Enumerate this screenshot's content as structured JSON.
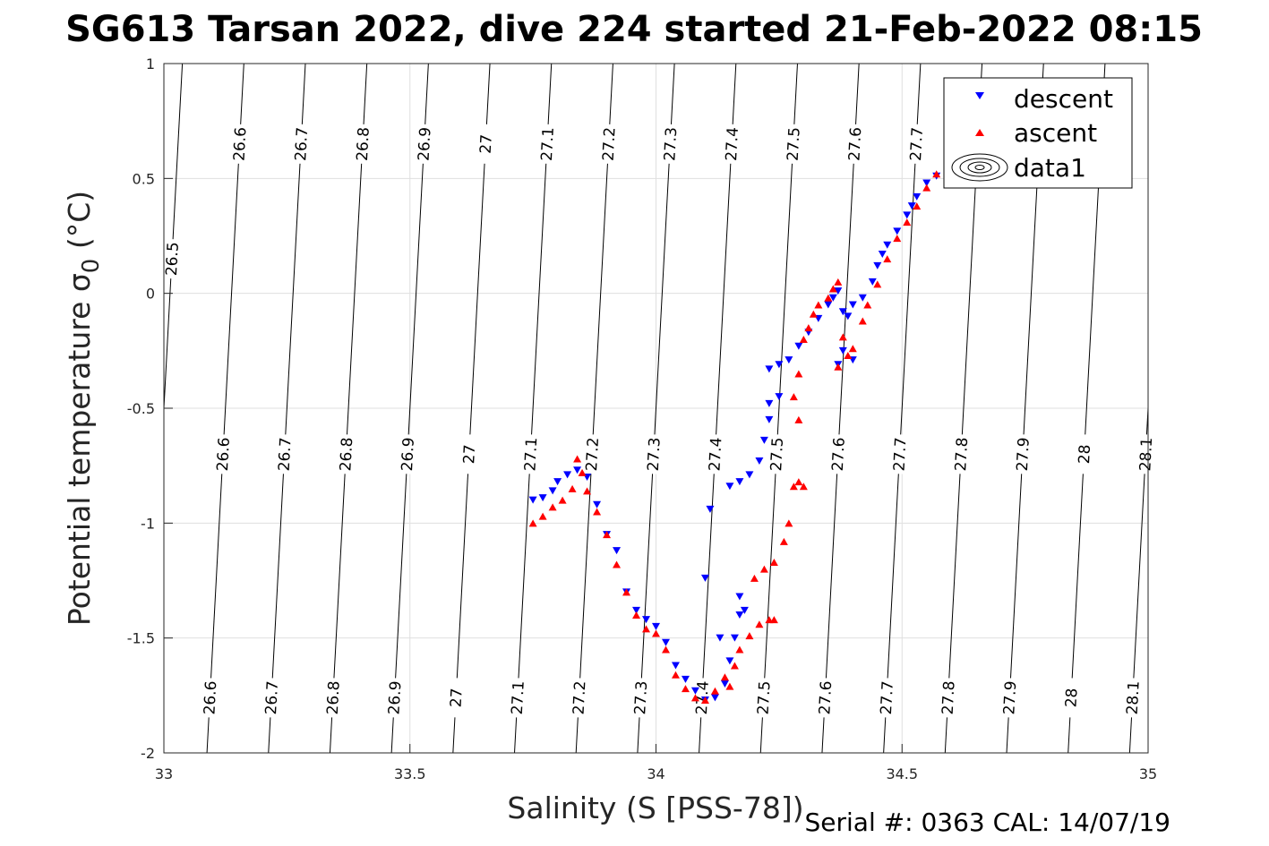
{
  "chart_data": {
    "type": "scatter",
    "title": "SG613 Tarsan 2022, dive 224 started 21-Feb-2022 08:15",
    "xlabel": "Salinity (S [PSS-78])",
    "ylabel_main": "Potential temperature ",
    "ylabel_sigma": "σ",
    "ylabel_sub": "0",
    "ylabel_unit": " (°C)",
    "xlim": [
      33,
      35
    ],
    "ylim": [
      -2,
      1
    ],
    "x_ticks": [
      "33",
      "33.5",
      "34",
      "34.5",
      "35"
    ],
    "y_ticks": [
      "-2",
      "-1.5",
      "-1",
      "-0.5",
      "0",
      "0.5",
      "1"
    ],
    "grid": true,
    "legend": {
      "position": "top-right",
      "entries": [
        "descent",
        "ascent",
        "data1"
      ]
    },
    "footer": "Serial #: 0363  CAL: 14/07/19",
    "colors": {
      "descent": "#0000ff",
      "ascent": "#ff0000",
      "contour": "#000000",
      "grid": "#dfdfdf"
    },
    "contour_levels": [
      26.5,
      26.6,
      26.7,
      26.8,
      26.9,
      27,
      27.1,
      27.2,
      27.3,
      27.4,
      27.5,
      27.6,
      27.7,
      27.8,
      27.9,
      28,
      28.1
    ],
    "contour_label_text": [
      "26.5",
      "26.6",
      "26.7",
      "26.8",
      "26.9",
      "27",
      "27.1",
      "27.2",
      "27.3",
      "27.4",
      "27.5",
      "27.6",
      "27.7",
      "27.8",
      "27.9",
      "28",
      "28.1"
    ],
    "series": [
      {
        "name": "descent",
        "marker": "triangle-down",
        "points": [
          [
            33.75,
            -0.9
          ],
          [
            33.77,
            -0.89
          ],
          [
            33.79,
            -0.86
          ],
          [
            33.8,
            -0.82
          ],
          [
            33.82,
            -0.79
          ],
          [
            33.84,
            -0.77
          ],
          [
            33.86,
            -0.8
          ],
          [
            33.88,
            -0.92
          ],
          [
            33.9,
            -1.05
          ],
          [
            33.92,
            -1.12
          ],
          [
            33.94,
            -1.3
          ],
          [
            33.96,
            -1.38
          ],
          [
            33.98,
            -1.42
          ],
          [
            34.0,
            -1.45
          ],
          [
            34.02,
            -1.52
          ],
          [
            34.04,
            -1.62
          ],
          [
            34.06,
            -1.68
          ],
          [
            34.08,
            -1.73
          ],
          [
            34.1,
            -1.77
          ],
          [
            34.12,
            -1.76
          ],
          [
            34.14,
            -1.7
          ],
          [
            34.15,
            -1.6
          ],
          [
            34.16,
            -1.5
          ],
          [
            34.17,
            -1.4
          ],
          [
            34.18,
            -1.38
          ],
          [
            34.17,
            -1.32
          ],
          [
            34.1,
            -1.24
          ],
          [
            34.13,
            -1.5
          ],
          [
            34.11,
            -0.94
          ],
          [
            34.15,
            -0.84
          ],
          [
            34.17,
            -0.82
          ],
          [
            34.19,
            -0.79
          ],
          [
            34.21,
            -0.73
          ],
          [
            34.22,
            -0.64
          ],
          [
            34.23,
            -0.55
          ],
          [
            34.23,
            -0.48
          ],
          [
            34.25,
            -0.45
          ],
          [
            34.23,
            -0.33
          ],
          [
            34.25,
            -0.31
          ],
          [
            34.27,
            -0.29
          ],
          [
            34.29,
            -0.23
          ],
          [
            34.31,
            -0.17
          ],
          [
            34.33,
            -0.11
          ],
          [
            34.35,
            -0.05
          ],
          [
            34.36,
            -0.02
          ],
          [
            34.37,
            0.01
          ],
          [
            34.38,
            -0.08
          ],
          [
            34.39,
            -0.1
          ],
          [
            34.4,
            -0.29
          ],
          [
            34.38,
            -0.25
          ],
          [
            34.37,
            -0.31
          ],
          [
            34.4,
            -0.05
          ],
          [
            34.42,
            -0.02
          ],
          [
            34.44,
            0.05
          ],
          [
            34.45,
            0.12
          ],
          [
            34.46,
            0.17
          ],
          [
            34.47,
            0.21
          ],
          [
            34.49,
            0.27
          ],
          [
            34.51,
            0.34
          ],
          [
            34.52,
            0.38
          ],
          [
            34.53,
            0.42
          ],
          [
            34.55,
            0.48
          ],
          [
            34.57,
            0.51
          ]
        ]
      },
      {
        "name": "ascent",
        "marker": "triangle-up",
        "points": [
          [
            33.75,
            -1.0
          ],
          [
            33.77,
            -0.97
          ],
          [
            33.79,
            -0.93
          ],
          [
            33.81,
            -0.9
          ],
          [
            33.83,
            -0.85
          ],
          [
            33.84,
            -0.72
          ],
          [
            33.85,
            -0.78
          ],
          [
            33.86,
            -0.86
          ],
          [
            33.88,
            -0.95
          ],
          [
            33.9,
            -1.05
          ],
          [
            33.92,
            -1.18
          ],
          [
            33.94,
            -1.3
          ],
          [
            33.96,
            -1.4
          ],
          [
            33.98,
            -1.46
          ],
          [
            34.0,
            -1.48
          ],
          [
            34.02,
            -1.55
          ],
          [
            34.04,
            -1.66
          ],
          [
            34.06,
            -1.72
          ],
          [
            34.08,
            -1.76
          ],
          [
            34.1,
            -1.77
          ],
          [
            34.12,
            -1.73
          ],
          [
            34.14,
            -1.67
          ],
          [
            34.15,
            -1.71
          ],
          [
            34.16,
            -1.62
          ],
          [
            34.17,
            -1.55
          ],
          [
            34.19,
            -1.49
          ],
          [
            34.21,
            -1.44
          ],
          [
            34.23,
            -1.42
          ],
          [
            34.24,
            -1.42
          ],
          [
            34.2,
            -1.24
          ],
          [
            34.22,
            -1.2
          ],
          [
            34.24,
            -1.17
          ],
          [
            34.26,
            -1.08
          ],
          [
            34.27,
            -1.0
          ],
          [
            34.28,
            -0.84
          ],
          [
            34.29,
            -0.82
          ],
          [
            34.3,
            -0.84
          ],
          [
            34.29,
            -0.55
          ],
          [
            34.28,
            -0.45
          ],
          [
            34.29,
            -0.35
          ],
          [
            34.3,
            -0.2
          ],
          [
            34.31,
            -0.15
          ],
          [
            34.32,
            -0.09
          ],
          [
            34.33,
            -0.05
          ],
          [
            34.35,
            -0.02
          ],
          [
            34.36,
            0.02
          ],
          [
            34.37,
            0.05
          ],
          [
            34.38,
            -0.19
          ],
          [
            34.39,
            -0.27
          ],
          [
            34.37,
            -0.32
          ],
          [
            34.4,
            -0.24
          ],
          [
            34.42,
            -0.12
          ],
          [
            34.43,
            -0.05
          ],
          [
            34.45,
            0.04
          ],
          [
            34.47,
            0.15
          ],
          [
            34.49,
            0.24
          ],
          [
            34.51,
            0.31
          ],
          [
            34.53,
            0.38
          ],
          [
            34.55,
            0.46
          ],
          [
            34.57,
            0.52
          ]
        ]
      },
      {
        "name": "data1",
        "marker": "contour"
      }
    ]
  }
}
